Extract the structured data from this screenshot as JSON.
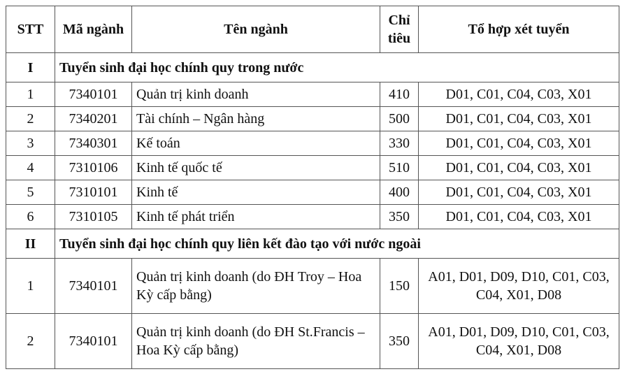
{
  "headers": [
    "STT",
    "Mã ngành",
    "Tên ngành",
    "Chỉ tiêu",
    "Tổ hợp xét tuyển"
  ],
  "sections": [
    {
      "roman": "I",
      "title": "Tuyển sinh đại học chính quy trong nước",
      "rows": [
        {
          "stt": "1",
          "code": "7340101",
          "name": "Quản trị kinh doanh",
          "quota": "410",
          "combos": "D01, C01, C04, C03, X01"
        },
        {
          "stt": "2",
          "code": "7340201",
          "name": "Tài chính – Ngân hàng",
          "quota": "500",
          "combos": "D01, C01, C04, C03, X01"
        },
        {
          "stt": "3",
          "code": "7340301",
          "name": "Kế toán",
          "quota": "330",
          "combos": "D01, C01, C04, C03, X01"
        },
        {
          "stt": "4",
          "code": "7310106",
          "name": "Kinh tế quốc tế",
          "quota": "510",
          "combos": "D01, C01, C04, C03, X01"
        },
        {
          "stt": "5",
          "code": "7310101",
          "name": "Kinh tế",
          "quota": "400",
          "combos": "D01, C01, C04, C03, X01"
        },
        {
          "stt": "6",
          "code": "7310105",
          "name": "Kinh tế phát triển",
          "quota": "350",
          "combos": "D01, C01, C04, C03, X01"
        }
      ]
    },
    {
      "roman": "II",
      "title": "Tuyển sinh đại học chính quy liên kết đào tạo với nước ngoài",
      "rows": [
        {
          "stt": "1",
          "code": "7340101",
          "name": "Quản trị kinh doanh  (do ĐH Troy – Hoa Kỳ cấp bằng)",
          "quota": "150",
          "combos": "A01, D01, D09, D10, C01, C03, C04, X01, D08"
        },
        {
          "stt": "2",
          "code": "7340101",
          "name": "Quản trị kinh doanh  (do ĐH St.Francis – Hoa Kỳ cấp bằng)",
          "quota": "350",
          "combos": "A01, D01, D09, D10, C01, C03, C04, X01, D08"
        }
      ]
    }
  ]
}
